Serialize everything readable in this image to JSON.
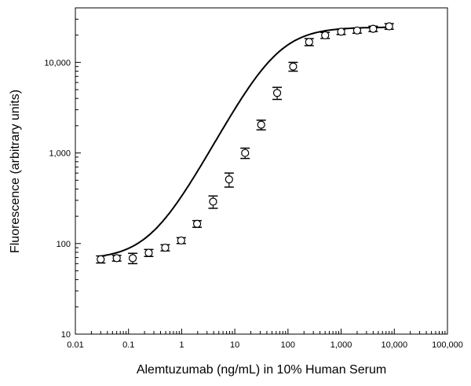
{
  "chart_data": {
    "type": "scatter",
    "title": "",
    "xlabel": "Alemtuzumab (ng/mL) in 10% Human Serum",
    "ylabel": "Fluorescence (arbitrary units)",
    "x_scale": "log",
    "y_scale": "log",
    "xlim": [
      0.01,
      100000
    ],
    "ylim": [
      10,
      40000
    ],
    "x_ticks": [
      0.01,
      0.1,
      1,
      10,
      100,
      1000,
      10000,
      100000
    ],
    "x_tick_labels": [
      "0.01",
      "0.1",
      "1",
      "10",
      "100",
      "1,000",
      "10,000",
      "100,000"
    ],
    "y_ticks": [
      10,
      100,
      1000,
      10000
    ],
    "y_tick_labels": [
      "10",
      "100",
      "1,000",
      "10,000"
    ],
    "grid": false,
    "fit_curve": true,
    "error_bars": true,
    "series": [
      {
        "x": [
          0.03,
          0.06,
          0.12,
          0.24,
          0.49,
          0.98,
          1.95,
          3.9,
          7.8,
          15.6,
          31.3,
          62.5,
          125,
          250,
          500,
          1000,
          2000,
          4000,
          8000
        ],
        "y": [
          67,
          69,
          69,
          79,
          90,
          108,
          165,
          290,
          510,
          1000,
          2050,
          4600,
          9000,
          16800,
          19900,
          21800,
          22500,
          23500,
          25000
        ],
        "err": [
          6,
          5,
          9,
          7,
          7,
          8,
          14,
          45,
          90,
          130,
          250,
          700,
          1000,
          1500,
          1500,
          1500,
          1500,
          1600,
          1800
        ]
      }
    ]
  }
}
